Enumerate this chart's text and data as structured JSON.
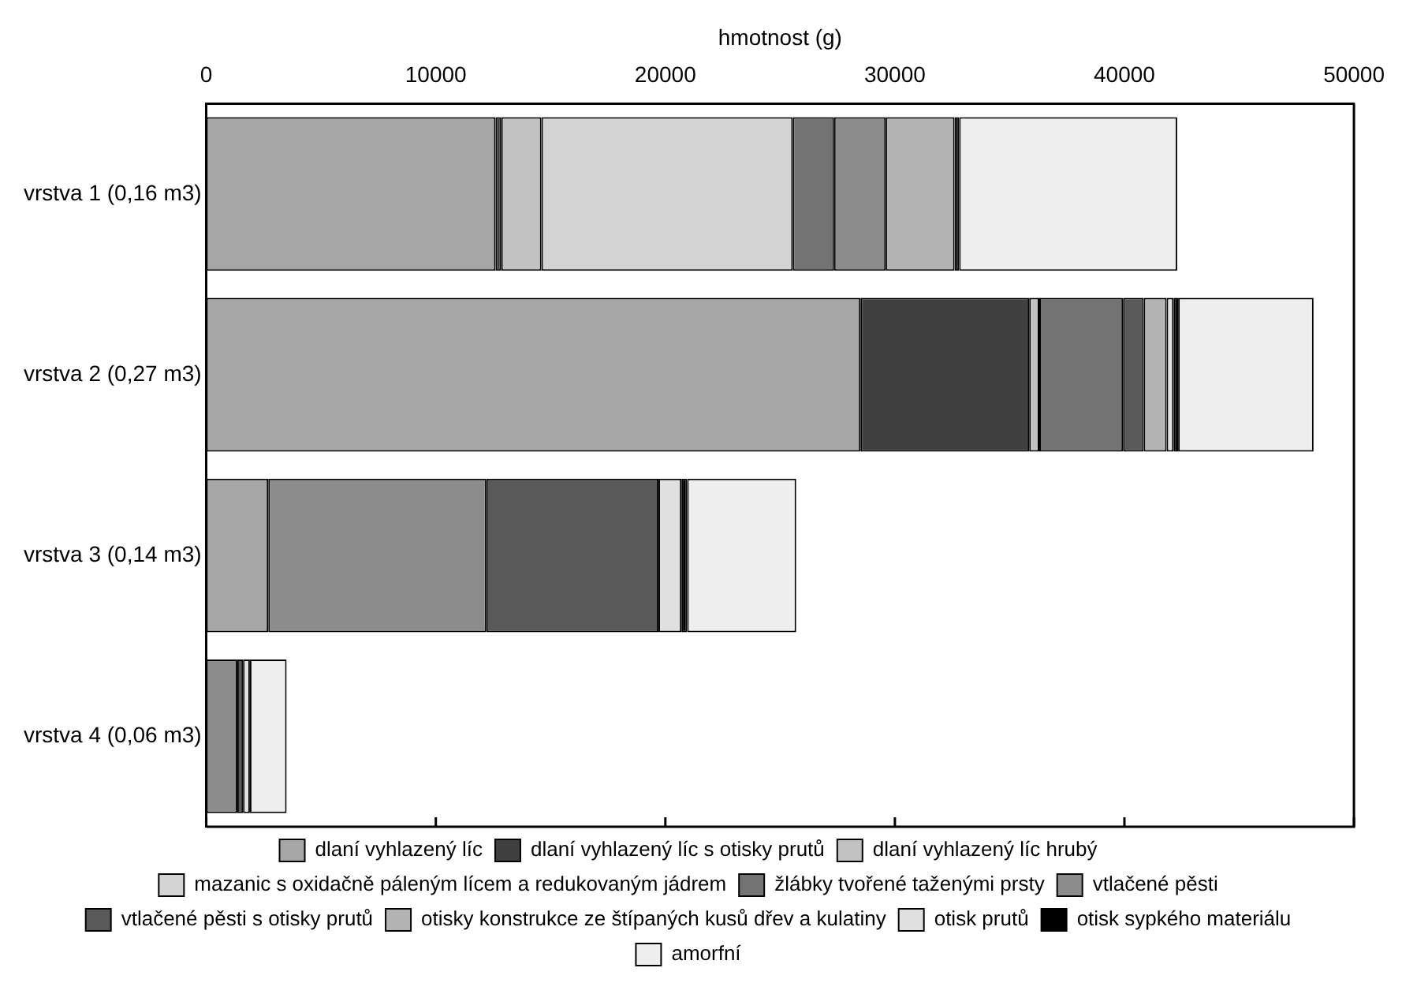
{
  "chart_data": {
    "type": "bar",
    "orientation": "horizontal",
    "stacked": true,
    "xlabel": "hmotnost (g)",
    "categories": [
      "vrstva 1 (0,16 m3)",
      "vrstva 2 (0,27 m3)",
      "vrstva 3 (0,14 m3)",
      "vrstva 4 (0,06 m3)"
    ],
    "xlim": [
      0,
      50000
    ],
    "xticks": [
      0,
      10000,
      20000,
      30000,
      40000,
      50000
    ],
    "grid": false,
    "legend": "bottom",
    "series": [
      {
        "name": "dlaní vyhlazený líc",
        "color": "#a6a6a6",
        "values": [
          12600,
          28500,
          2700,
          null
        ]
      },
      {
        "name": "dlaní vyhlazený líc s otisky prutů",
        "color": "#404040",
        "values": [
          250,
          7350,
          null,
          null
        ]
      },
      {
        "name": "dlaní vyhlazený líc hrubý",
        "color": "#c2c2c2",
        "values": [
          1750,
          440,
          null,
          null
        ]
      },
      {
        "name": "mazanic s oxidačně páleným lícem a redukovaným jádrem",
        "color": "#d4d4d4",
        "values": [
          10950,
          null,
          null,
          null
        ]
      },
      {
        "name": "žlábky tvořené taženými prsty",
        "color": "#737373",
        "values": [
          1800,
          3650,
          null,
          null
        ]
      },
      {
        "name": "vtlačené pěsti",
        "color": "#8c8c8c",
        "values": [
          2250,
          null,
          9500,
          1350
        ]
      },
      {
        "name": "vtlačené pěsti s otisky prutů",
        "color": "#595959",
        "values": [
          null,
          900,
          7500,
          250
        ]
      },
      {
        "name": "otisky konstrukce ze štípaných kusů dřev a kulatiny",
        "color": "#b3b3b3",
        "values": [
          3000,
          1000,
          null,
          null
        ]
      },
      {
        "name": "otisk prutů",
        "color": "#e0e0e0",
        "values": [
          null,
          300,
          1000,
          300
        ]
      },
      {
        "name": "otisk sypkého materiálu",
        "color": "#000000",
        "values": [
          200,
          200,
          250,
          null
        ]
      },
      {
        "name": "amorfní",
        "color": "#eeeeee",
        "values": [
          9500,
          5900,
          4750,
          1600
        ]
      }
    ]
  }
}
